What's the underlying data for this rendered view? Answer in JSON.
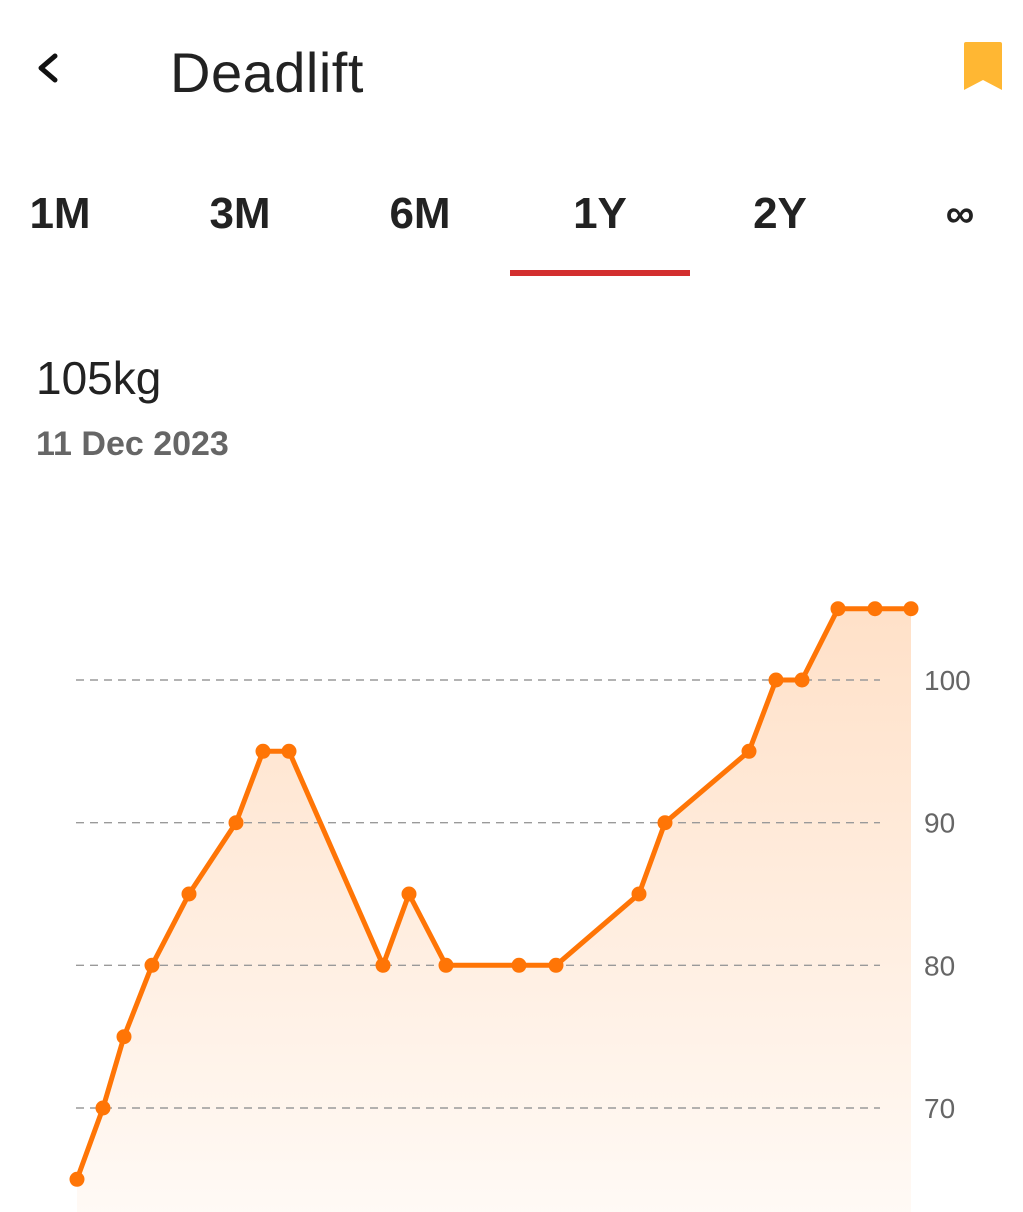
{
  "header": {
    "back_icon": "chevron-left-icon",
    "title": "Deadlift",
    "bookmark_icon": "bookmark-icon",
    "bookmark_color": "#FFB733"
  },
  "tabs": [
    {
      "label": "1M",
      "selected": false
    },
    {
      "label": "3M",
      "selected": false
    },
    {
      "label": "6M",
      "selected": false
    },
    {
      "label": "1Y",
      "selected": true
    },
    {
      "label": "2Y",
      "selected": false
    },
    {
      "label": "∞",
      "selected": false
    }
  ],
  "accent_color": "#D32F2F",
  "summary": {
    "value": "105kg",
    "date": "11 Dec 2023"
  },
  "chart_data": {
    "type": "line",
    "title": "",
    "xlabel": "",
    "ylabel": "",
    "ylim": [
      62.5,
      107.5
    ],
    "y_ticks": [
      70,
      80,
      90,
      100
    ],
    "grid": "dashed-horizontal",
    "line_color": "#FF7506",
    "area_fill": true,
    "series": [
      {
        "values": [
          65,
          70,
          75,
          80,
          85,
          90,
          95,
          95,
          80,
          85,
          80,
          80,
          80,
          85,
          90,
          95,
          100,
          100,
          105,
          105,
          105
        ]
      }
    ]
  }
}
